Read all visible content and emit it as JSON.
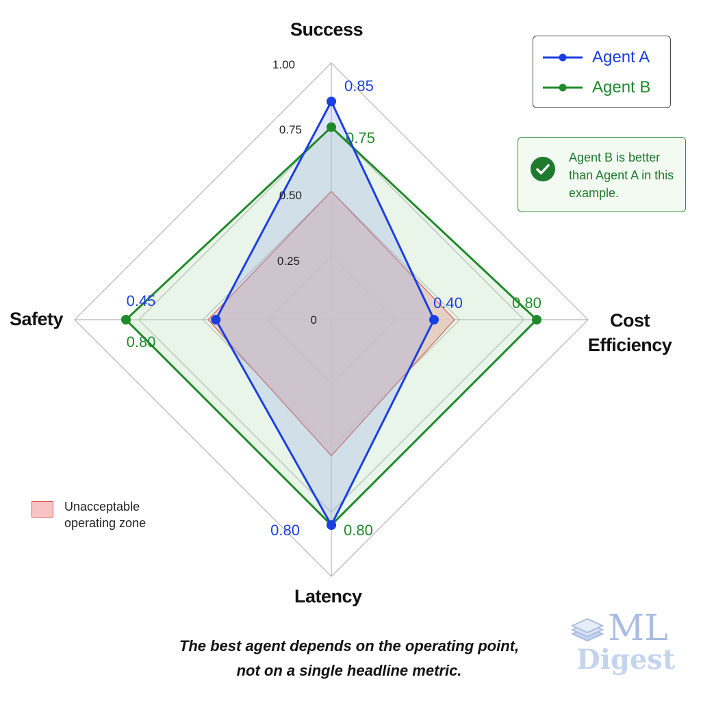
{
  "colors": {
    "agent_a": "#1a3fe0",
    "agent_b": "#1e8a2a",
    "zone_fill": "#f8c3c3",
    "zone_stroke": "#e05555",
    "grid": "#b5b5b5",
    "note_green": "#1f7a2e"
  },
  "legend": {
    "agent_a": "Agent A",
    "agent_b": "Agent B",
    "zone": "Unacceptable operating zone"
  },
  "note": {
    "icon": "check-icon",
    "text": "Agent B is better than Agent A in this example."
  },
  "caption": {
    "line1": "The best agent depends on the operating point,",
    "line2": "not on a single headline metric."
  },
  "watermark": {
    "line1": "ML",
    "line2": "Digest",
    "icon": "book-icon"
  },
  "chart_data": {
    "type": "radar",
    "axes": [
      "Success",
      "Cost Efficiency",
      "Latency",
      "Safety"
    ],
    "ticks": [
      "0",
      "0.25",
      "0.50",
      "0.75",
      "1.00"
    ],
    "tick_values": [
      0,
      0.25,
      0.5,
      0.75,
      1.0
    ],
    "range": [
      0,
      1
    ],
    "series": [
      {
        "name": "Agent A",
        "values": [
          0.85,
          0.4,
          0.8,
          0.45
        ],
        "labels": [
          "0.85",
          "0.40",
          "0.80",
          "0.45"
        ]
      },
      {
        "name": "Agent B",
        "values": [
          0.75,
          0.8,
          0.8,
          0.8
        ],
        "labels": [
          "0.75",
          "0.80",
          "0.80",
          "0.80"
        ]
      }
    ],
    "zone": {
      "name": "Unacceptable operating zone",
      "values": [
        0.5,
        0.48,
        0.53,
        0.48
      ]
    }
  }
}
